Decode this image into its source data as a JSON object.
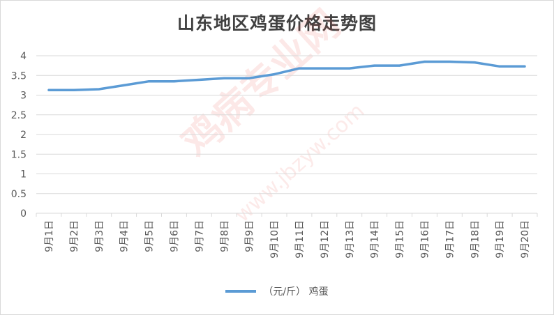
{
  "chart_data": {
    "type": "line",
    "title": "山东地区鸡蛋价格走势图",
    "categories": [
      "9月1日",
      "9月2日",
      "9月3日",
      "9月4日",
      "9月5日",
      "9月6日",
      "9月7日",
      "9月8日",
      "9月9日",
      "9月10日",
      "9月11日",
      "9月12日",
      "9月13日",
      "9月14日",
      "9月15日",
      "9月16日",
      "9月17日",
      "9月18日",
      "9月19日",
      "9月20日"
    ],
    "series": [
      {
        "name": "（元/斤） 鸡蛋",
        "color": "#5b9bd5",
        "values": [
          3.13,
          3.13,
          3.15,
          3.25,
          3.35,
          3.35,
          3.39,
          3.43,
          3.43,
          3.53,
          3.68,
          3.68,
          3.68,
          3.75,
          3.75,
          3.85,
          3.85,
          3.83,
          3.73,
          3.73
        ]
      }
    ],
    "ylim": [
      0,
      4
    ],
    "yticks": [
      "0",
      "0.5",
      "1",
      "1.5",
      "2",
      "2.5",
      "3",
      "3.5",
      "4"
    ],
    "grid": true,
    "legend_position": "bottom"
  },
  "watermark": {
    "main": "鸡病专业网",
    "sub": "www.jbzyw.com"
  }
}
